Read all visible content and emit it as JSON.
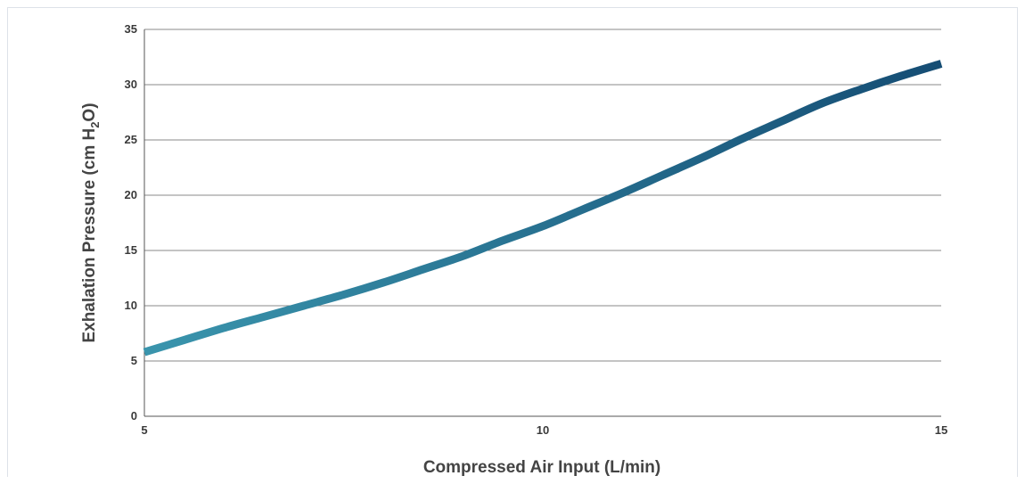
{
  "chart_data": {
    "type": "line",
    "title": "",
    "xlabel": "Compressed Air Input (L/min)",
    "ylabel": {
      "prefix": "Exhalation Pressure (cm H",
      "subscript": "2",
      "suffix": "O)"
    },
    "xlim": [
      5,
      15
    ],
    "ylim": [
      0,
      35
    ],
    "xticks": [
      "5",
      "10",
      "15"
    ],
    "yticks": [
      "0",
      "5",
      "10",
      "15",
      "20",
      "25",
      "30",
      "35"
    ],
    "grid": true,
    "series": [
      {
        "colors": {
          "start": "#3a95ad",
          "end": "#154d74"
        },
        "x": [
          5,
          5.5,
          6,
          6.5,
          7,
          7.5,
          8,
          8.5,
          9,
          9.5,
          10,
          10.5,
          11,
          11.5,
          12,
          12.5,
          13,
          13.5,
          14,
          14.5,
          15
        ],
        "y": [
          5.8,
          6.9,
          8.0,
          9.0,
          10.0,
          11.0,
          12.1,
          13.3,
          14.5,
          15.9,
          17.2,
          18.7,
          20.2,
          21.8,
          23.4,
          25.1,
          26.7,
          28.3,
          29.6,
          30.8,
          31.9
        ]
      }
    ]
  }
}
